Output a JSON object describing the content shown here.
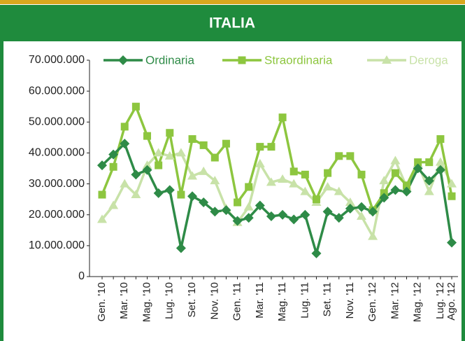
{
  "chart_data": {
    "type": "line",
    "title": "ITALIA",
    "categories": [
      "Gen. '10",
      null,
      "Mar. '10",
      null,
      "Mag. '10",
      null,
      "Lug. '10",
      null,
      "Set. '10",
      null,
      "Nov. '10",
      null,
      "Gen. '11",
      null,
      "Mar. '11",
      null,
      "Mag. '11",
      null,
      "Lug. '11",
      null,
      "Set. '11",
      null,
      "Nov. '11",
      null,
      "Gen. '12",
      null,
      "Mar. '12",
      null,
      "Mag. '12",
      null,
      "Lug. '12",
      "Ago. '12"
    ],
    "series": [
      {
        "name": "Ordinaria",
        "color": "#2e8b47",
        "marker": "diamond",
        "values": [
          36000000,
          39500000,
          43000000,
          33000000,
          34500000,
          27000000,
          28000000,
          9200000,
          26000000,
          24000000,
          21000000,
          21500000,
          18000000,
          19000000,
          23000000,
          19500000,
          20000000,
          18500000,
          20000000,
          7500000,
          21000000,
          19000000,
          22000000,
          22500000,
          21000000,
          25500000,
          28000000,
          27500000,
          35000000,
          31000000,
          34500000,
          11000000
        ]
      },
      {
        "name": "Straordinaria",
        "color": "#8dc63f",
        "marker": "square",
        "values": [
          26500000,
          35500000,
          48500000,
          55000000,
          45500000,
          36000000,
          46500000,
          26500000,
          44500000,
          42500000,
          38500000,
          43000000,
          24000000,
          29000000,
          42000000,
          42000000,
          51500000,
          34000000,
          33000000,
          25000000,
          33500000,
          39000000,
          39000000,
          33000000,
          21500000,
          27000000,
          33500000,
          29500000,
          37000000,
          37000000,
          44500000,
          26000000
        ]
      },
      {
        "name": "Deroga",
        "color": "#c8e2a8",
        "marker": "triangle",
        "values": [
          18500000,
          23000000,
          30000000,
          26500000,
          36000000,
          40000000,
          39000000,
          40000000,
          32500000,
          34000000,
          31000000,
          22000000,
          17500000,
          22500000,
          36500000,
          30500000,
          31500000,
          30000000,
          27500000,
          24000000,
          29000000,
          27500000,
          24000000,
          19500000,
          13000000,
          31000000,
          37500000,
          29000000,
          36500000,
          27500000,
          37000000,
          30000000
        ]
      }
    ],
    "ylim": [
      0,
      70000000
    ],
    "yticks": [
      0,
      {
        "value": 10000000,
        "label": "10.000.000"
      },
      {
        "value": 20000000,
        "label": "20.000.000"
      },
      {
        "value": 30000000,
        "label": "30.000.000"
      },
      {
        "value": 40000000,
        "label": "40.000.000"
      },
      {
        "value": 50000000,
        "label": "50.000.000"
      },
      {
        "value": 60000000,
        "label": "60.000.000"
      },
      {
        "value": 70000000,
        "label": "70.000.000"
      }
    ],
    "legend": "top"
  }
}
